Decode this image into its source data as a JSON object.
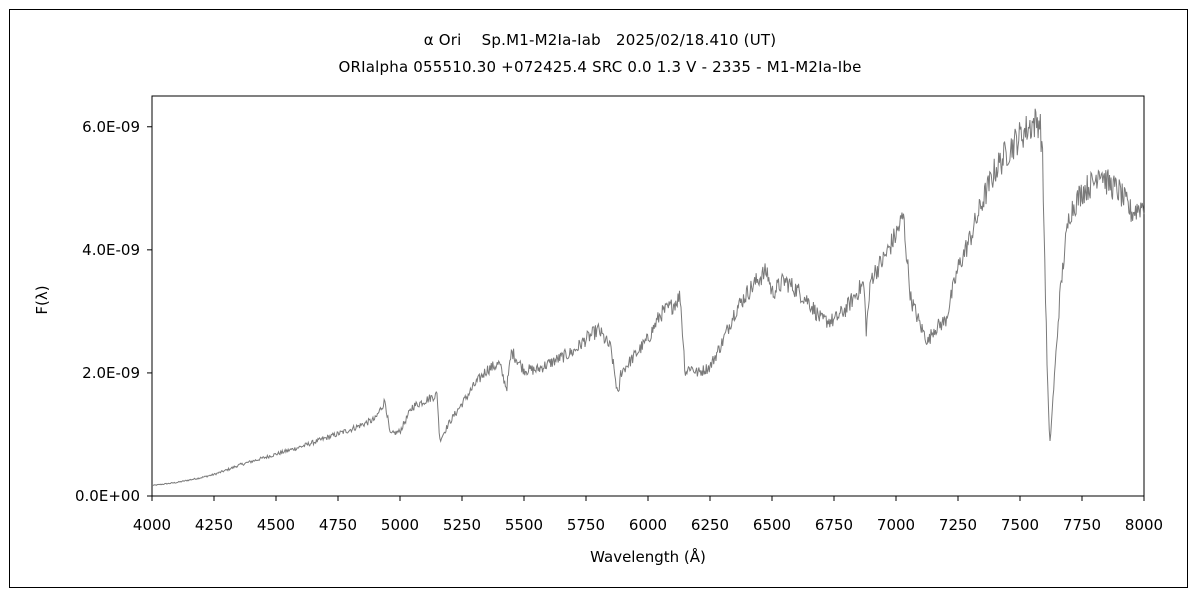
{
  "chart_data": {
    "type": "line",
    "title": "α Ori　 Sp.M1-M2Ia-Iab　2025/02/18.410 (UT)",
    "subtitle": "ORIalpha 055510.30 +072425.4 SRC 0.0 1.3 V - 2335 - M1-M2Ia-Ibe",
    "xlabel": "Wavelength (Å)",
    "ylabel": "F(λ)",
    "xlim": [
      4000,
      8000
    ],
    "ylim": [
      0,
      6.5e-09
    ],
    "x_ticks": [
      4000,
      4250,
      4500,
      4750,
      5000,
      5250,
      5500,
      5750,
      6000,
      6250,
      6500,
      6750,
      7000,
      7250,
      7500,
      7750,
      8000
    ],
    "x_tick_labels": [
      "4000",
      "4250",
      "4500",
      "4750",
      "5000",
      "5250",
      "5500",
      "5750",
      "6000",
      "6250",
      "6500",
      "6750",
      "7000",
      "7250",
      "7500",
      "7750",
      "8000"
    ],
    "y_ticks": [
      0,
      2e-09,
      4e-09,
      6e-09
    ],
    "y_tick_labels": [
      "0.0E+00",
      "2.0E-09",
      "4.0E-09",
      "6.0E-09"
    ],
    "grid": false,
    "line_color": "#7a7a7a",
    "series": [
      {
        "x": [
          4000,
          4100,
          4200,
          4250,
          4300,
          4350,
          4400,
          4500,
          4600,
          4700,
          4800,
          4900,
          4940,
          4960,
          5000,
          5050,
          5100,
          5150,
          5160,
          5200,
          5250,
          5300,
          5350,
          5400,
          5430,
          5450,
          5500,
          5550,
          5600,
          5700,
          5750,
          5800,
          5850,
          5880,
          5890,
          5900,
          5950,
          6000,
          6050,
          6100,
          6130,
          6150,
          6170,
          6200,
          6250,
          6300,
          6350,
          6400,
          6450,
          6480,
          6500,
          6550,
          6600,
          6650,
          6700,
          6750,
          6800,
          6850,
          6870,
          6880,
          6900,
          6950,
          7000,
          7030,
          7040,
          7060,
          7100,
          7130,
          7150,
          7200,
          7250,
          7300,
          7350,
          7400,
          7450,
          7500,
          7550,
          7580,
          7590,
          7600,
          7610,
          7620,
          7640,
          7660,
          7680,
          7700,
          7750,
          7800,
          7820,
          7850,
          7900,
          7950,
          8000
        ],
        "y": [
          1.7e-10,
          2.2e-10,
          3e-10,
          3.5e-10,
          4.2e-10,
          5e-10,
          5.6e-10,
          6.8e-10,
          8e-10,
          9.4e-10,
          1.08e-09,
          1.25e-09,
          1.55e-09,
          1e-09,
          1.05e-09,
          1.45e-09,
          1.55e-09,
          1.65e-09,
          9e-10,
          1.2e-09,
          1.5e-09,
          1.8e-09,
          2.05e-09,
          2.15e-09,
          1.75e-09,
          2.35e-09,
          2.05e-09,
          2.05e-09,
          2.15e-09,
          2.35e-09,
          2.55e-09,
          2.7e-09,
          2.4e-09,
          1.6e-09,
          2e-09,
          2.05e-09,
          2.3e-09,
          2.55e-09,
          2.95e-09,
          3.1e-09,
          3.25e-09,
          2e-09,
          2.1e-09,
          2e-09,
          2.1e-09,
          2.5e-09,
          3e-09,
          3.3e-09,
          3.55e-09,
          3.65e-09,
          3.3e-09,
          3.5e-09,
          3.35e-09,
          3.15e-09,
          2.85e-09,
          2.85e-09,
          3.05e-09,
          3.35e-09,
          3.45e-09,
          2.7e-09,
          3.55e-09,
          3.85e-09,
          4.25e-09,
          4.55e-09,
          4.05e-09,
          3.2e-09,
          2.75e-09,
          2.5e-09,
          2.7e-09,
          2.85e-09,
          3.7e-09,
          4.2e-09,
          4.8e-09,
          5.3e-09,
          5.6e-09,
          5.85e-09,
          6.05e-09,
          6.1e-09,
          5.6e-09,
          3.8e-09,
          2e-09,
          8e-10,
          2e-09,
          3.2e-09,
          4e-09,
          4.6e-09,
          4.95e-09,
          5.1e-09,
          5.35e-09,
          5.1e-09,
          4.95e-09,
          4.6e-09,
          4.75e-09
        ]
      }
    ]
  }
}
